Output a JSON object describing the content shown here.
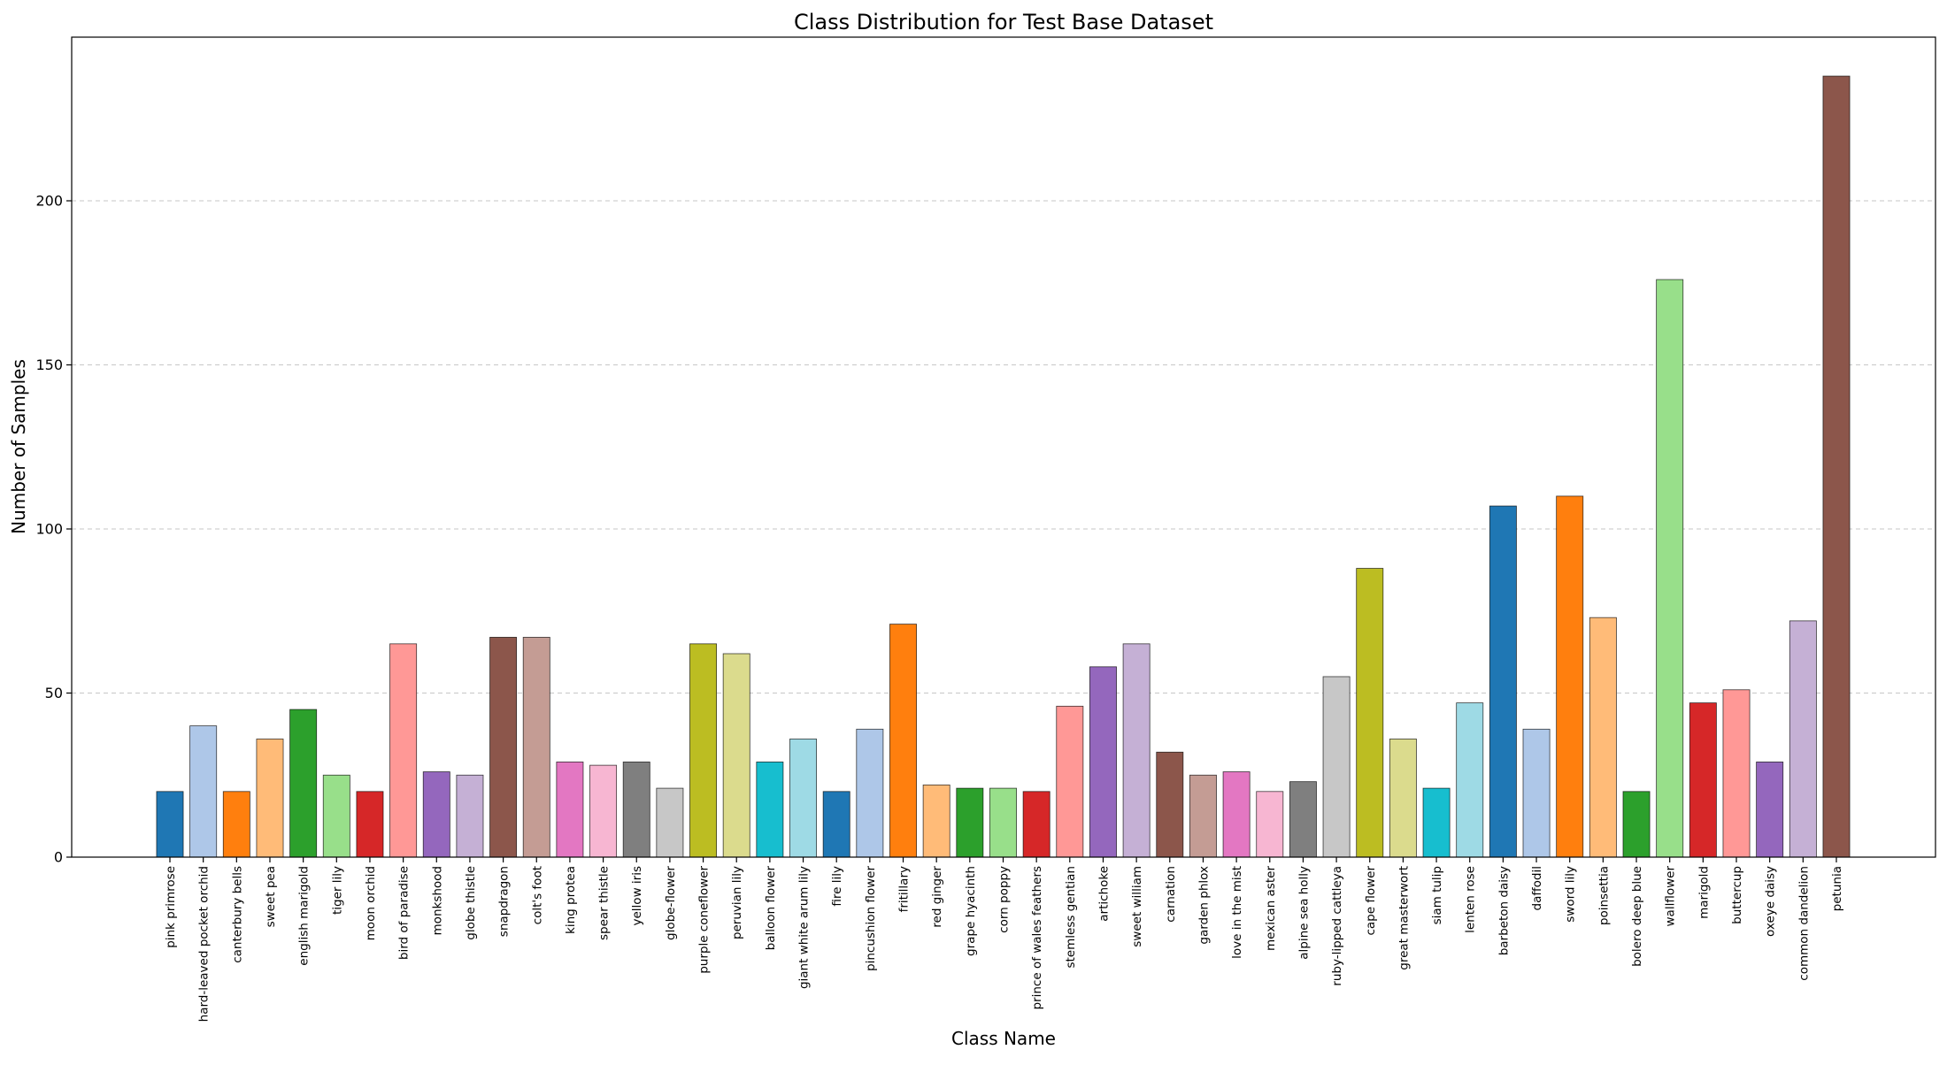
{
  "chart_data": {
    "type": "bar",
    "title": "Class Distribution for Test Base Dataset",
    "xlabel": "Class Name",
    "ylabel": "Number of Samples",
    "ylim": [
      0,
      250
    ],
    "yticks": [
      0,
      50,
      100,
      150,
      200
    ],
    "grid": "y-dashed",
    "categories": [
      "pink primrose",
      "hard-leaved pocket orchid",
      "canterbury bells",
      "sweet pea",
      "english marigold",
      "tiger lily",
      "moon orchid",
      "bird of paradise",
      "monkshood",
      "globe thistle",
      "snapdragon",
      "colt's foot",
      "king protea",
      "spear thistle",
      "yellow iris",
      "globe-flower",
      "purple coneflower",
      "peruvian lily",
      "balloon flower",
      "giant white arum lily",
      "fire lily",
      "pincushion flower",
      "fritillary",
      "red ginger",
      "grape hyacinth",
      "corn poppy",
      "prince of wales feathers",
      "stemless gentian",
      "artichoke",
      "sweet william",
      "carnation",
      "garden phlox",
      "love in the mist",
      "mexican aster",
      "alpine sea holly",
      "ruby-lipped cattleya",
      "cape flower",
      "great masterwort",
      "siam tulip",
      "lenten rose",
      "barbeton daisy",
      "daffodil",
      "sword lily",
      "poinsettia",
      "bolero deep blue",
      "wallflower",
      "marigold",
      "buttercup",
      "oxeye daisy",
      "common dandelion",
      "petunia"
    ],
    "values": [
      20,
      40,
      20,
      36,
      45,
      25,
      20,
      65,
      26,
      25,
      67,
      67,
      29,
      28,
      29,
      21,
      65,
      62,
      29,
      36,
      20,
      39,
      71,
      22,
      21,
      21,
      20,
      46,
      58,
      65,
      32,
      25,
      26,
      20,
      23,
      55,
      88,
      36,
      21,
      47,
      107,
      39,
      110,
      73,
      20,
      176,
      47,
      51,
      29,
      72,
      238
    ],
    "colors": [
      "#1f77b4",
      "#aec7e8",
      "#ff7f0e",
      "#ffbb78",
      "#2ca02c",
      "#98df8a",
      "#d62728",
      "#ff9896",
      "#9467bd",
      "#c5b0d5",
      "#8c564b",
      "#c49c94",
      "#e377c2",
      "#f7b6d2",
      "#7f7f7f",
      "#c7c7c7",
      "#bcbd22",
      "#dbdb8d",
      "#17becf",
      "#9edae5"
    ]
  }
}
